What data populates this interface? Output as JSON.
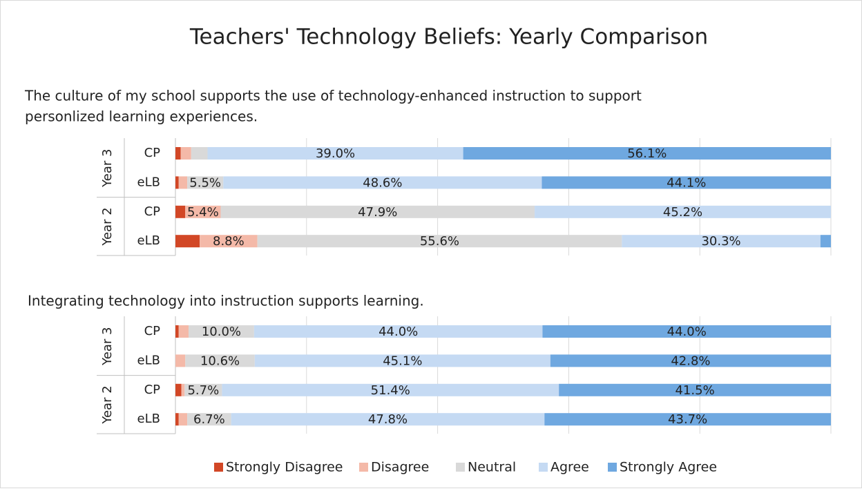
{
  "title": "Teachers' Technology Beliefs: Yearly Comparison",
  "legend": [
    {
      "name": "Strongly Disagree",
      "color": "#d24726"
    },
    {
      "name": "Disagree",
      "color": "#f4b9a8"
    },
    {
      "name": "Neutral",
      "color": "#d9d9d9"
    },
    {
      "name": "Agree",
      "color": "#c5daf3"
    },
    {
      "name": "Strongly Agree",
      "color": "#6fa8e0"
    }
  ],
  "chart_data": [
    {
      "type": "stacked-bar-horizontal",
      "title": [
        "The culture of my school supports the use of technology-enhanced instruction to support",
        "personlized learning experiences."
      ],
      "groups": [
        "Year 3",
        "Year 2"
      ],
      "categories": [
        "CP",
        "eLB",
        "CP",
        "eLB"
      ],
      "xlim": [
        0,
        100
      ],
      "xticks": [
        0,
        20,
        40,
        60,
        80,
        100
      ],
      "grid": true,
      "series": [
        {
          "values": [
            0.8,
            0.5,
            1.5,
            3.7
          ],
          "value_labels": [
            null,
            null,
            null,
            null
          ]
        },
        {
          "values": [
            1.6,
            1.3,
            5.4,
            8.8
          ],
          "value_labels": [
            null,
            null,
            "5.4%",
            "8.8%"
          ]
        },
        {
          "values": [
            2.5,
            5.5,
            47.9,
            55.6
          ],
          "value_labels": [
            null,
            "5.5%",
            "47.9%",
            "55.6%"
          ]
        },
        {
          "values": [
            39.0,
            48.6,
            45.2,
            30.3
          ],
          "value_labels": [
            "39.0%",
            "48.6%",
            "45.2%",
            "30.3%"
          ]
        },
        {
          "values": [
            56.1,
            44.1,
            0,
            1.6
          ],
          "value_labels": [
            "56.1%",
            "44.1%",
            null,
            null
          ]
        }
      ]
    },
    {
      "type": "stacked-bar-horizontal",
      "title": [
        "Integrating technology into instruction supports learning."
      ],
      "groups": [
        "Year 3",
        "Year 2"
      ],
      "categories": [
        "CP",
        "eLB",
        "CP",
        "eLB"
      ],
      "xlim": [
        0,
        100
      ],
      "xticks": [
        0,
        20,
        40,
        60,
        80,
        100
      ],
      "grid": true,
      "series": [
        {
          "values": [
            0.5,
            0,
            0.9,
            0.5
          ],
          "value_labels": [
            null,
            null,
            null,
            null
          ]
        },
        {
          "values": [
            1.5,
            1.5,
            0.5,
            1.3
          ],
          "value_labels": [
            null,
            null,
            null,
            null
          ]
        },
        {
          "values": [
            10.0,
            10.6,
            5.7,
            6.7
          ],
          "value_labels": [
            "10.0%",
            "10.6%",
            "5.7%",
            "6.7%"
          ]
        },
        {
          "values": [
            44.0,
            45.1,
            51.4,
            47.8
          ],
          "value_labels": [
            "44.0%",
            "45.1%",
            "51.4%",
            "47.8%"
          ]
        },
        {
          "values": [
            44.0,
            42.8,
            41.5,
            43.7
          ],
          "value_labels": [
            "44.0%",
            "42.8%",
            "41.5%",
            "43.7%"
          ]
        }
      ]
    }
  ]
}
